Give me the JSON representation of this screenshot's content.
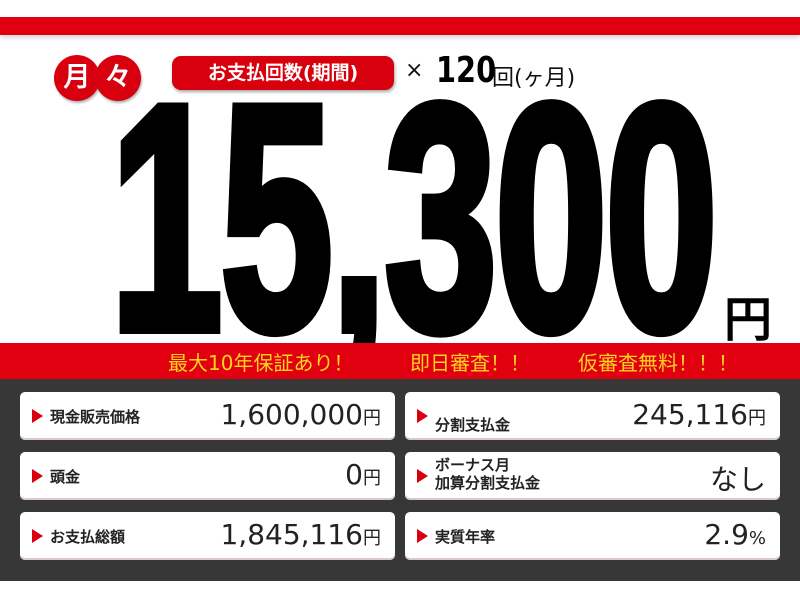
{
  "header": {
    "monthly_chars": [
      "月",
      "々"
    ],
    "payments_label": "お支払回数(期間)",
    "times": "×",
    "payment_count": "120",
    "payment_unit": "回(ヶ月)"
  },
  "price": {
    "amount": "15,300",
    "currency": "円"
  },
  "banner": [
    "最大10年保証あり！",
    "即日審査！！",
    "仮審査無料！！！"
  ],
  "details": [
    {
      "label": "現金販売価格",
      "value": "1,600,000",
      "unit": "円"
    },
    {
      "label": "分割支払金",
      "value": "245,116",
      "unit": "円"
    },
    {
      "label": "頭金",
      "value": "0",
      "unit": "円"
    },
    {
      "label_lines": [
        "ボーナス月",
        "加算分割支払金"
      ],
      "value": "なし",
      "unit": ""
    },
    {
      "label": "お支払総額",
      "value": "1,845,116",
      "unit": "円"
    },
    {
      "label": "実質年率",
      "value": "2.9",
      "unit": "%"
    }
  ],
  "colors": {
    "red": "#e1000f",
    "yellow": "#ffd21e",
    "panel": "#373737"
  }
}
